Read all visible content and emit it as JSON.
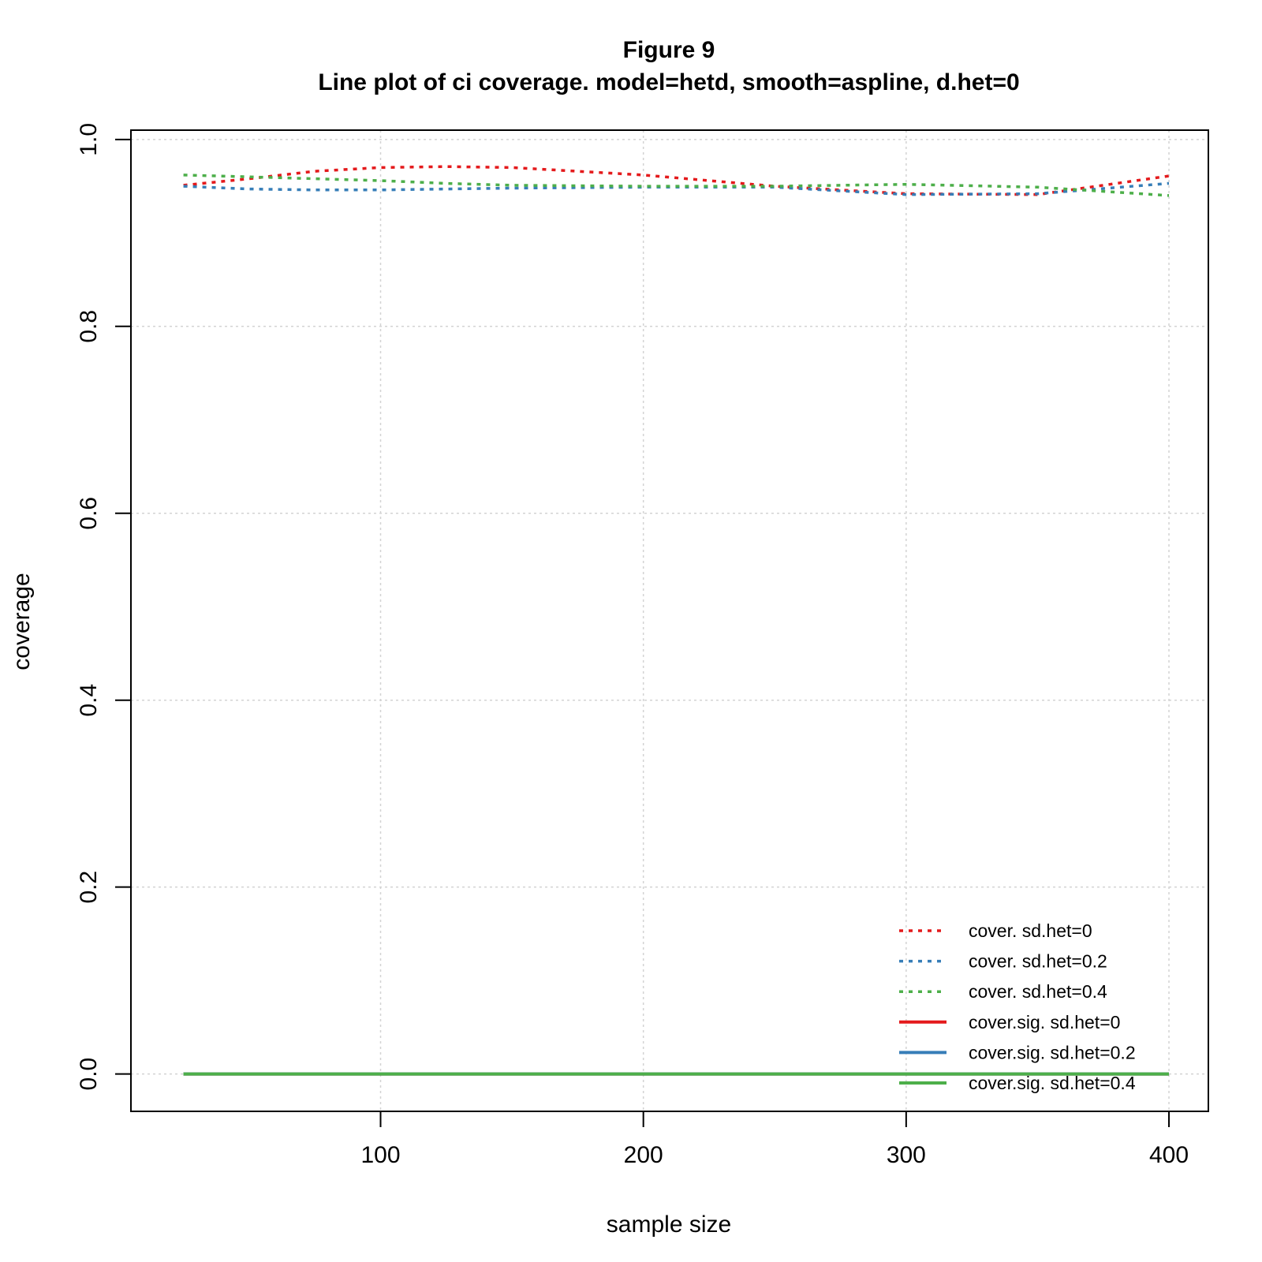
{
  "title": "Figure 9",
  "subtitle": "Line plot of ci coverage. model=hetd, smooth=aspline, d.het=0",
  "chart_data": {
    "type": "line",
    "title": "Figure 9",
    "subtitle": "Line plot of ci coverage. model=hetd, smooth=aspline, d.het=0",
    "xlabel": "sample size",
    "ylabel": "coverage",
    "xlim": [
      5,
      415
    ],
    "ylim": [
      -0.04,
      1.01
    ],
    "xticks": [
      100,
      200,
      300,
      400
    ],
    "yticks": [
      0.0,
      0.2,
      0.4,
      0.6,
      0.8,
      1.0
    ],
    "xtick_labels": [
      "100",
      "200",
      "300",
      "400"
    ],
    "ytick_labels": [
      "0.0",
      "0.2",
      "0.4",
      "0.6",
      "0.8",
      "1.0"
    ],
    "grid": true,
    "legend_position": "bottom-right",
    "x": [
      25,
      50,
      75,
      100,
      125,
      150,
      200,
      250,
      300,
      350,
      400
    ],
    "series": [
      {
        "name": "cover. sd.het=0",
        "color": "#e41a1c",
        "line_style": "dotted",
        "values": [
          0.951,
          0.958,
          0.966,
          0.97,
          0.971,
          0.97,
          0.962,
          0.95,
          0.942,
          0.941,
          0.961
        ]
      },
      {
        "name": "cover. sd.het=0.2",
        "color": "#377eb8",
        "line_style": "dotted",
        "values": [
          0.95,
          0.947,
          0.946,
          0.946,
          0.947,
          0.948,
          0.949,
          0.949,
          0.941,
          0.942,
          0.953
        ]
      },
      {
        "name": "cover. sd.het=0.4",
        "color": "#4daf4a",
        "line_style": "dotted",
        "values": [
          0.962,
          0.96,
          0.958,
          0.956,
          0.953,
          0.951,
          0.95,
          0.95,
          0.952,
          0.949,
          0.94
        ]
      },
      {
        "name": "cover.sig. sd.het=0",
        "color": "#e41a1c",
        "line_style": "solid",
        "values": [
          0,
          0,
          0,
          0,
          0,
          0,
          0,
          0,
          0,
          0,
          0
        ]
      },
      {
        "name": "cover.sig. sd.het=0.2",
        "color": "#377eb8",
        "line_style": "solid",
        "values": [
          0,
          0,
          0,
          0,
          0,
          0,
          0,
          0,
          0,
          0,
          0
        ]
      },
      {
        "name": "cover.sig. sd.het=0.4",
        "color": "#4daf4a",
        "line_style": "solid",
        "values": [
          0,
          0,
          0,
          0,
          0,
          0,
          0,
          0,
          0,
          0,
          0
        ]
      }
    ]
  }
}
